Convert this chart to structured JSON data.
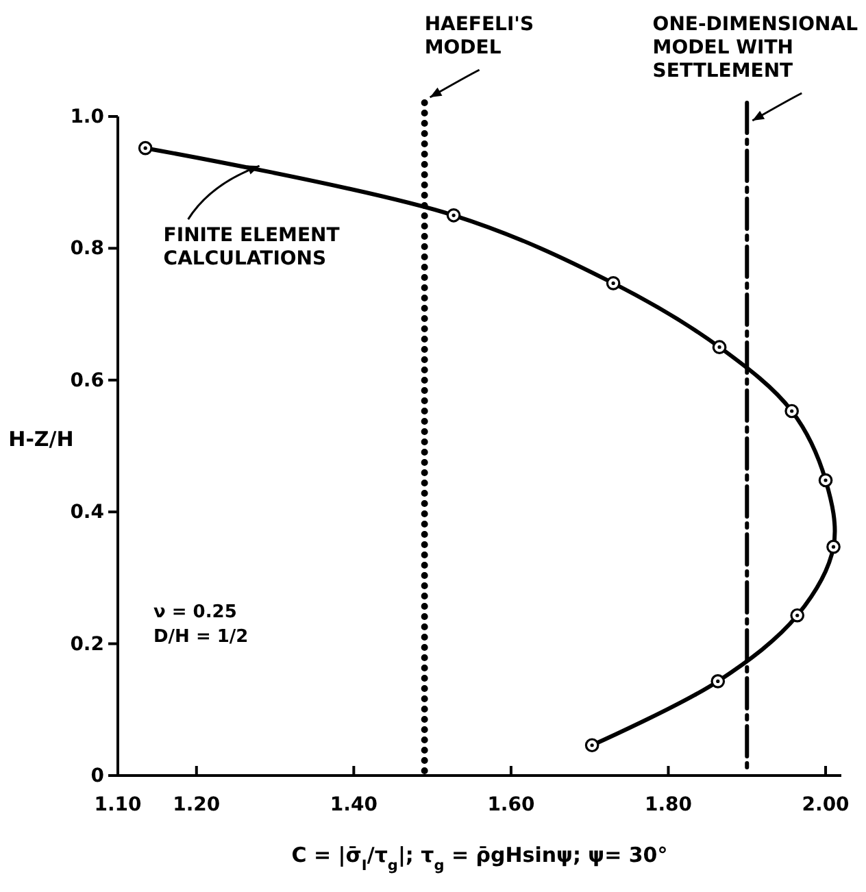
{
  "chart_data": {
    "type": "line",
    "xlabel": "C = |σ̄$_{I}$/τ$_{g}$|;  τ$_{g}$ = ρ̄gHsinψ; ψ= 30°",
    "ylabel": "H-Z/H",
    "x": [
      1.135,
      1.527,
      1.73,
      1.865,
      1.957,
      2.0,
      2.01,
      1.964,
      1.863,
      1.703
    ],
    "series": [
      {
        "color": "#000000",
        "values": [
          0.952,
          0.85,
          0.747,
          0.65,
          0.553,
          0.448,
          0.347,
          0.243,
          0.143,
          0.046
        ]
      }
    ],
    "marker": "circle",
    "line_style": "solid",
    "xlim": [
      1.1,
      2.02
    ],
    "xticks": [
      {
        "value": 1.1,
        "label": "1.10"
      },
      {
        "value": 1.2,
        "label": "1.20"
      },
      {
        "value": 1.4,
        "label": "1.40"
      },
      {
        "value": 1.6,
        "label": "1.60"
      },
      {
        "value": 1.8,
        "label": "1.80"
      },
      {
        "value": 2.0,
        "label": "2.00"
      }
    ],
    "ylim": [
      0,
      1.0
    ],
    "yticks": [
      0,
      {
        "value": 0.2,
        "label": "0.2"
      },
      {
        "value": 0.4,
        "label": "0.4"
      },
      {
        "value": 0.6,
        "label": "0.6"
      },
      {
        "value": 0.8,
        "label": "0.8"
      },
      {
        "value": 1.0,
        "label": "1.0"
      }
    ],
    "ref_lines": [
      {
        "axis": "x",
        "value": 1.49,
        "label": "HAEFELI'S MODEL",
        "color": "#000000",
        "line_style": "dotted"
      },
      {
        "axis": "x",
        "value": 1.9,
        "label": "ONE-DIMENSIONAL MODEL WITH SETTLEMENT",
        "color": "#000000",
        "line_style": "dashed"
      }
    ],
    "annotations": [
      {
        "text": "FINITE ELEMENT CALCULATIONS",
        "x": 1.28,
        "y": 0.925
      },
      "ν = 0.25",
      "D/H = 1/2"
    ],
    "tick_labels": "xy"
  }
}
